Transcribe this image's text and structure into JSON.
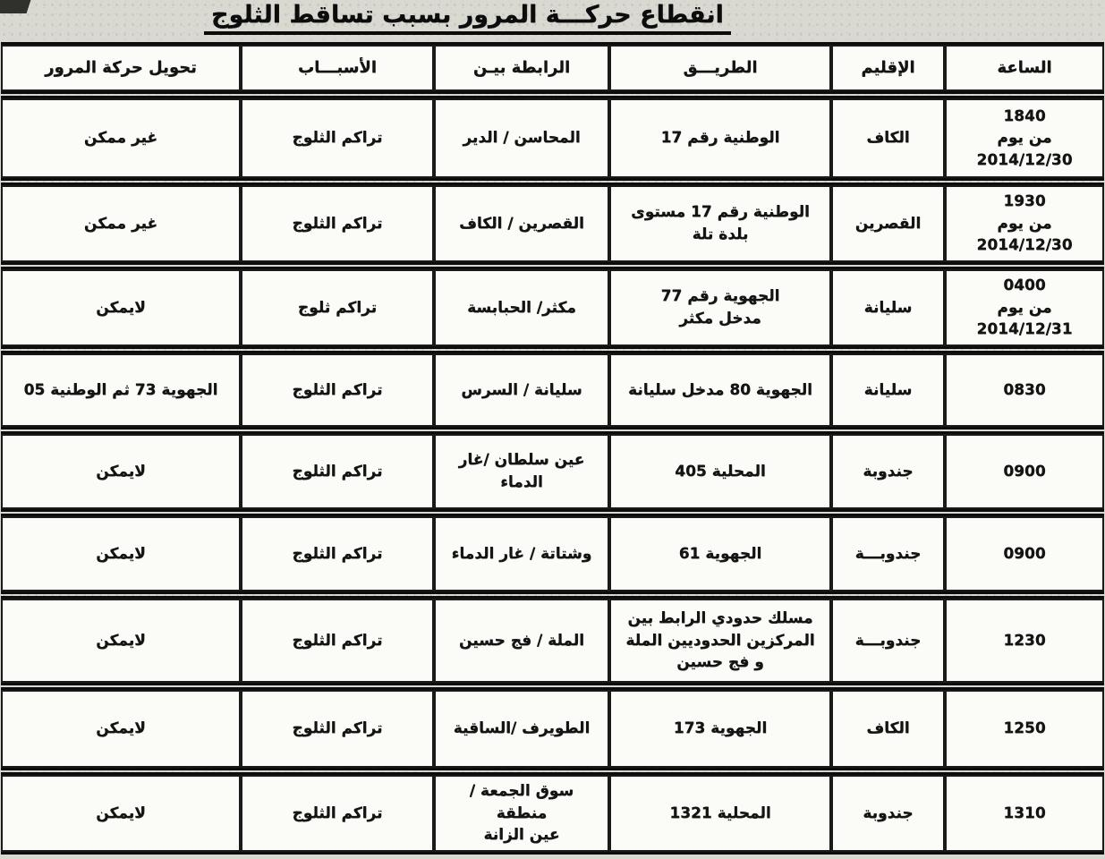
{
  "title": "انقطاع حركـــة المرور بسبب تساقط الثلوج",
  "table": {
    "headers": {
      "time": "الساعة",
      "region": "الإقليم",
      "road": "الطريـــق",
      "link": "الرابطة بيـن",
      "cause": "الأسبـــاب",
      "diversion": "تحويل حركة المرور"
    },
    "rows": [
      {
        "time": "1840\nمن يوم\n2014/12/30",
        "region": "الكاف",
        "road": "الوطنية رقم 17",
        "link": "المحاسن / الدير",
        "cause": "تراكم الثلوج",
        "diversion": "غير ممكن"
      },
      {
        "time": "1930\nمن يوم\n2014/12/30",
        "region": "القصرين",
        "road": "الوطنية رقم 17 مستوى\nبلدة تلة",
        "link": "القصرين / الكاف",
        "cause": "تراكم الثلوج",
        "diversion": "غير ممكن"
      },
      {
        "time": "0400\nمن يوم\n2014/12/31",
        "region": "سليانة",
        "road": "الجهوية رقم 77\nمدخل مكثر",
        "link": "مكثر/ الحبابسة",
        "cause": "تراكم ثلوج",
        "diversion": "لايمكن"
      },
      {
        "time": "0830",
        "region": "سليانة",
        "road": "الجهوية 80 مدخل سليانة",
        "link": "سليانة / السرس",
        "cause": "تراكم الثلوج",
        "diversion": "الجهوية 73 ثم الوطنية 05"
      },
      {
        "time": "0900",
        "region": "جندوبة",
        "road": "المحلية 405",
        "link": "عين سلطان /غار\nالدماء",
        "cause": "تراكم الثلوج",
        "diversion": "لايمكن"
      },
      {
        "time": "0900",
        "region": "جندوبـــة",
        "road": "الجهوية 61",
        "link": "وشتاتة / غار الدماء",
        "cause": "تراكم الثلوج",
        "diversion": "لايمكن"
      },
      {
        "time": "1230",
        "region": "جندوبـــة",
        "road": "مسلك حدودي الرابط بين\nالمركزين الحدوديين الملة\nو فج حسين",
        "link": "الملة / فج حسين",
        "cause": "تراكم الثلوج",
        "diversion": "لايمكن"
      },
      {
        "time": "1250",
        "region": "الكاف",
        "road": "الجهوية 173",
        "link": "الطويرف /الساقية",
        "cause": "تراكم الثلوج",
        "diversion": "لايمكن"
      },
      {
        "time": "1310",
        "region": "جندوبة",
        "road": "المحلية 1321",
        "link": "سوق الجمعة / منطقة\nعين الزانة",
        "cause": "تراكم الثلوج",
        "diversion": "لايمكن"
      }
    ]
  }
}
